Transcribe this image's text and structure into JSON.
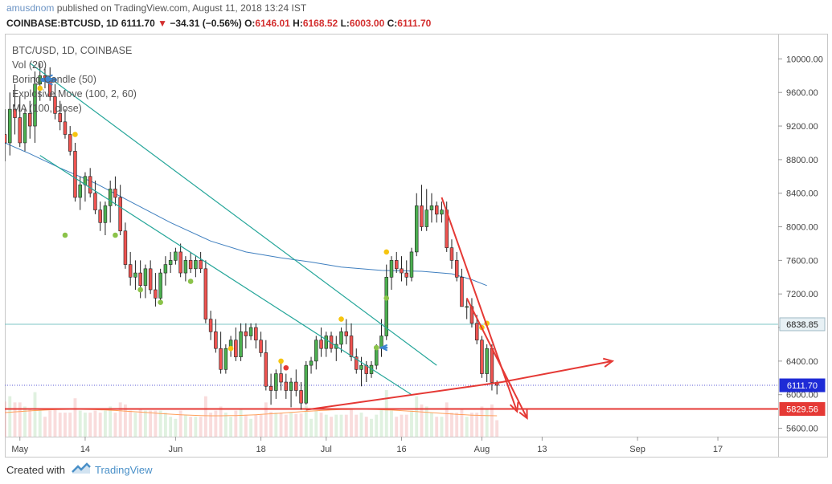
{
  "header": {
    "author": "amusdnom",
    "published_text": "published on TradingView.com, August 11, 2018 13:24 IST",
    "symbol": "COINBASE:BTCUSD, 1D",
    "last": "6111.70",
    "change": "−34.31 (−0.56%)",
    "open_label": "O:",
    "open": "6146.01",
    "high_label": "H:",
    "high": "6168.52",
    "low_label": "L:",
    "low": "6003.00",
    "close_label": "C:",
    "close": "6111.70"
  },
  "legend": [
    "BTC/USD, 1D, COINBASE",
    "Vol (20)",
    "Boring Candle (50)",
    "Explosive Move (100, 2, 60)",
    "MA (100, close)"
  ],
  "footer": {
    "created_with": "Created with",
    "brand": "TradingView"
  },
  "colors": {
    "up": "#26a69a",
    "up_fill": "#4caf50",
    "down": "#ef5350",
    "ma": "#3f7fbf",
    "trend": "#26a69a",
    "annot": "#e53935",
    "level_blue": "#7cc5c5"
  },
  "chart_data": {
    "type": "candlestick",
    "symbol": "BTC/USD",
    "timeframe": "1D",
    "exchange": "COINBASE",
    "y_axis": {
      "ticks": [
        10000,
        9600,
        9200,
        8800,
        8400,
        8000,
        7600,
        7200,
        6800,
        6400,
        6000,
        5600
      ],
      "range": [
        5500,
        10300
      ],
      "position": "right"
    },
    "x_axis": {
      "ticks": [
        "May",
        "14",
        "Jun",
        "18",
        "Jul",
        "16",
        "Aug",
        "13",
        "Sep",
        "17"
      ],
      "tick_days": [
        0,
        13,
        31,
        48,
        61,
        76,
        92,
        104,
        123,
        139
      ],
      "range_days": [
        -3,
        151
      ]
    },
    "price_labels": [
      {
        "value": "6838.85",
        "price": 6838.85,
        "kind": "horizontal-line"
      },
      {
        "value": "6111.70",
        "price": 6111.7,
        "kind": "last-price"
      },
      {
        "value": "5829.56",
        "price": 5829.56,
        "kind": "support-line"
      }
    ],
    "candles_ohlc": [
      [
        -3,
        9100,
        9400,
        8780,
        9000
      ],
      [
        -2,
        9000,
        9600,
        8850,
        9400
      ],
      [
        -1,
        9400,
        9700,
        9100,
        9300
      ],
      [
        0,
        9300,
        9550,
        8950,
        9000
      ],
      [
        1,
        9000,
        9400,
        8900,
        9350
      ],
      [
        2,
        9350,
        9500,
        9050,
        9200
      ],
      [
        3,
        9200,
        9850,
        9000,
        9700
      ],
      [
        4,
        9700,
        9950,
        9500,
        9800
      ],
      [
        5,
        9800,
        9900,
        9650,
        9750
      ],
      [
        6,
        9750,
        9900,
        9500,
        9550
      ],
      [
        7,
        9550,
        9700,
        9280,
        9350
      ],
      [
        8,
        9350,
        9500,
        9150,
        9250
      ],
      [
        9,
        9250,
        9400,
        9050,
        9100
      ],
      [
        10,
        9100,
        9200,
        8850,
        8900
      ],
      [
        11,
        8900,
        9000,
        8300,
        8350
      ],
      [
        12,
        8350,
        8600,
        8200,
        8500
      ],
      [
        13,
        8500,
        8650,
        8300,
        8600
      ],
      [
        14,
        8600,
        8700,
        8350,
        8400
      ],
      [
        15,
        8400,
        8550,
        8150,
        8200
      ],
      [
        16,
        8200,
        8300,
        7950,
        8050
      ],
      [
        17,
        8050,
        8300,
        7900,
        8250
      ],
      [
        18,
        8250,
        8550,
        8050,
        8450
      ],
      [
        19,
        8450,
        8600,
        8250,
        8350
      ],
      [
        20,
        8350,
        8500,
        7900,
        7950
      ],
      [
        21,
        7950,
        8050,
        7500,
        7550
      ],
      [
        22,
        7550,
        7700,
        7300,
        7400
      ],
      [
        23,
        7400,
        7600,
        7250,
        7450
      ],
      [
        24,
        7450,
        7600,
        7150,
        7300
      ],
      [
        25,
        7300,
        7550,
        7150,
        7500
      ],
      [
        26,
        7500,
        7600,
        7200,
        7250
      ],
      [
        27,
        7250,
        7450,
        7050,
        7150
      ],
      [
        28,
        7150,
        7500,
        7100,
        7450
      ],
      [
        29,
        7450,
        7650,
        7300,
        7550
      ],
      [
        30,
        7550,
        7700,
        7450,
        7600
      ],
      [
        31,
        7600,
        7750,
        7550,
        7700
      ],
      [
        32,
        7700,
        7800,
        7400,
        7450
      ],
      [
        33,
        7450,
        7650,
        7350,
        7600
      ],
      [
        34,
        7600,
        7700,
        7450,
        7500
      ],
      [
        35,
        7500,
        7650,
        7400,
        7600
      ],
      [
        36,
        7600,
        7700,
        7450,
        7500
      ],
      [
        37,
        7500,
        7600,
        6850,
        6900
      ],
      [
        38,
        6900,
        7000,
        6650,
        6750
      ],
      [
        39,
        6750,
        6900,
        6500,
        6550
      ],
      [
        40,
        6550,
        6750,
        6250,
        6300
      ],
      [
        41,
        6300,
        6600,
        6250,
        6550
      ],
      [
        42,
        6550,
        6700,
        6450,
        6650
      ],
      [
        43,
        6650,
        6800,
        6400,
        6450
      ],
      [
        44,
        6450,
        6850,
        6400,
        6750
      ],
      [
        45,
        6750,
        6850,
        6550,
        6700
      ],
      [
        46,
        6700,
        6850,
        6650,
        6800
      ],
      [
        47,
        6800,
        6850,
        6550,
        6650
      ],
      [
        48,
        6650,
        6750,
        6450,
        6500
      ],
      [
        49,
        6500,
        6650,
        6050,
        6100
      ],
      [
        50,
        6100,
        6250,
        5880,
        6050
      ],
      [
        51,
        6050,
        6300,
        5950,
        6250
      ],
      [
        52,
        6250,
        6400,
        6050,
        6150
      ],
      [
        53,
        6150,
        6250,
        5950,
        6050
      ],
      [
        54,
        6050,
        6200,
        5850,
        6150
      ],
      [
        55,
        6150,
        6300,
        5980,
        6050
      ],
      [
        56,
        6050,
        6150,
        5820,
        5900
      ],
      [
        57,
        5900,
        6400,
        5880,
        6350
      ],
      [
        58,
        6350,
        6450,
        6250,
        6400
      ],
      [
        59,
        6400,
        6700,
        6300,
        6650
      ],
      [
        60,
        6650,
        6800,
        6450,
        6550
      ],
      [
        61,
        6550,
        6750,
        6450,
        6700
      ],
      [
        62,
        6700,
        6750,
        6500,
        6550
      ],
      [
        63,
        6550,
        6700,
        6400,
        6600
      ],
      [
        64,
        6600,
        6800,
        6500,
        6750
      ],
      [
        65,
        6750,
        6900,
        6600,
        6700
      ],
      [
        66,
        6700,
        6850,
        6400,
        6450
      ],
      [
        67,
        6450,
        6550,
        6250,
        6300
      ],
      [
        68,
        6300,
        6450,
        6100,
        6350
      ],
      [
        69,
        6350,
        6400,
        6150,
        6250
      ],
      [
        70,
        6250,
        6400,
        6200,
        6350
      ],
      [
        71,
        6350,
        6600,
        6300,
        6550
      ],
      [
        72,
        6550,
        6900,
        6450,
        6700
      ],
      [
        73,
        6700,
        7550,
        6650,
        7400
      ],
      [
        74,
        7400,
        7650,
        7250,
        7600
      ],
      [
        75,
        7600,
        7700,
        7450,
        7500
      ],
      [
        76,
        7500,
        7650,
        7350,
        7450
      ],
      [
        77,
        7450,
        7600,
        7300,
        7400
      ],
      [
        78,
        7400,
        7750,
        7350,
        7700
      ],
      [
        79,
        7700,
        8400,
        7650,
        8250
      ],
      [
        80,
        8250,
        8500,
        7950,
        8000
      ],
      [
        81,
        8000,
        8450,
        7950,
        8200
      ],
      [
        82,
        8200,
        8400,
        8050,
        8250
      ],
      [
        83,
        8250,
        8300,
        8050,
        8150
      ],
      [
        84,
        8150,
        8300,
        8050,
        8200
      ],
      [
        85,
        8200,
        8300,
        7700,
        7750
      ],
      [
        86,
        7750,
        7850,
        7500,
        7600
      ],
      [
        87,
        7600,
        7700,
        7350,
        7400
      ],
      [
        88,
        7400,
        7500,
        7050,
        7050
      ],
      [
        89,
        7050,
        7150,
        6900,
        7050
      ],
      [
        90,
        7050,
        7150,
        6800,
        6850
      ],
      [
        91,
        6850,
        6950,
        6600,
        6650
      ],
      [
        92,
        6650,
        6700,
        6200,
        6250
      ],
      [
        93,
        6250,
        6600,
        6150,
        6550
      ],
      [
        94,
        6550,
        6600,
        6050,
        6146.01
      ],
      [
        95,
        6146.01,
        6168.52,
        6003,
        6111.7
      ]
    ],
    "moving_average_100": [
      [
        -3,
        9000
      ],
      [
        2,
        8870
      ],
      [
        8,
        8700
      ],
      [
        15,
        8520
      ],
      [
        22,
        8300
      ],
      [
        30,
        8050
      ],
      [
        38,
        7830
      ],
      [
        45,
        7700
      ],
      [
        52,
        7630
      ],
      [
        58,
        7580
      ],
      [
        64,
        7520
      ],
      [
        72,
        7480
      ],
      [
        80,
        7470
      ],
      [
        86,
        7440
      ],
      [
        90,
        7370
      ],
      [
        93,
        7300
      ]
    ],
    "annotations": [
      {
        "type": "trendline",
        "color": "green",
        "from": [
          2,
          9950
        ],
        "to": [
          83,
          6350
        ]
      },
      {
        "type": "trendline",
        "color": "green",
        "from": [
          4,
          8850
        ],
        "to": [
          78,
          6000
        ]
      },
      {
        "type": "horizontal-line",
        "color": "light-blue",
        "price": 6838.85
      },
      {
        "type": "horizontal-line",
        "color": "red",
        "price": 5829.56
      },
      {
        "type": "trendline",
        "color": "red",
        "from": [
          57,
          5820
        ],
        "to": [
          96,
          6150
        ]
      },
      {
        "type": "arrow",
        "color": "red",
        "from": [
          96,
          6150
        ],
        "to": [
          118,
          6400
        ]
      },
      {
        "type": "arrow",
        "color": "red",
        "from": [
          84,
          8350
        ],
        "to": [
          99,
          5800
        ]
      },
      {
        "type": "arrow",
        "color": "red",
        "from": [
          89,
          7150
        ],
        "to": [
          101,
          5720
        ]
      },
      {
        "type": "arrow",
        "color": "blue",
        "from": [
          7,
          9750
        ],
        "to": [
          4.5,
          9750
        ],
        "size": "large"
      },
      {
        "type": "arrow",
        "color": "blue",
        "from": [
          73,
          6560
        ],
        "to": [
          72,
          6560
        ],
        "size": "small"
      }
    ],
    "markers": [
      {
        "color": "yellow",
        "day": 4,
        "price": 9650
      },
      {
        "color": "yellow",
        "day": 11,
        "price": 9100
      },
      {
        "color": "green",
        "day": 9,
        "price": 7900
      },
      {
        "color": "green",
        "day": 19,
        "price": 7900
      },
      {
        "color": "green",
        "day": 24,
        "price": 7250
      },
      {
        "color": "green",
        "day": 28,
        "price": 7100
      },
      {
        "color": "green",
        "day": 34,
        "price": 7350
      },
      {
        "color": "yellow",
        "day": 42,
        "price": 6550
      },
      {
        "color": "yellow",
        "day": 52,
        "price": 6400
      },
      {
        "color": "red",
        "day": 53,
        "price": 6320
      },
      {
        "color": "yellow",
        "day": 64,
        "price": 6900
      },
      {
        "color": "yellow",
        "day": 73,
        "price": 7700
      },
      {
        "color": "green",
        "day": 73,
        "price": 7150
      },
      {
        "color": "green",
        "day": 71,
        "price": 6560
      },
      {
        "color": "yellow",
        "day": 92,
        "price": 6800
      },
      {
        "color": "yellow",
        "day": 93,
        "price": 6850
      }
    ]
  }
}
